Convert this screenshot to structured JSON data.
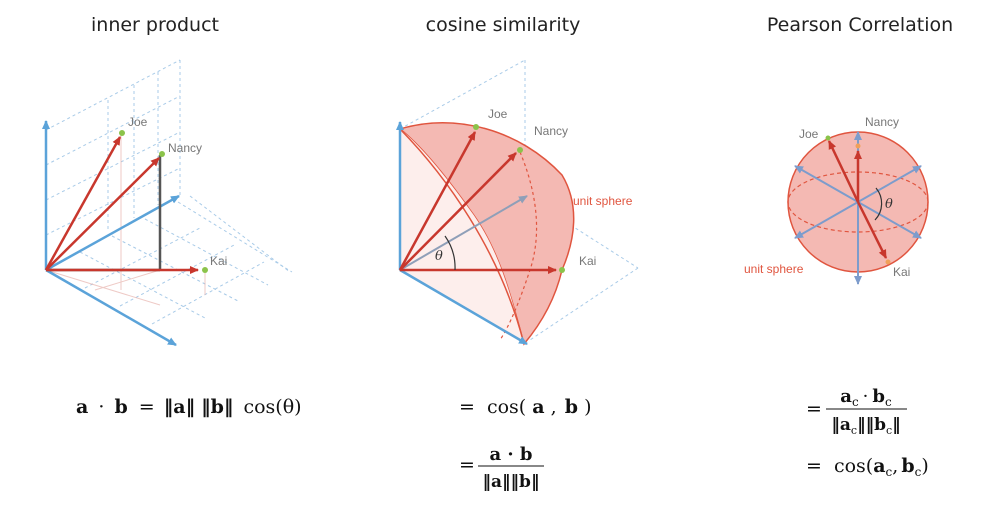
{
  "panels": {
    "inner": {
      "title": "inner product",
      "labels": {
        "joe": "Joe",
        "nancy": "Nancy",
        "kai": "Kai"
      },
      "formula": {
        "a": "a",
        "dot": "·",
        "b": "b",
        "eq": "=",
        "norm_a": "‖a‖",
        "norm_b": "‖b‖",
        "cos": "cos(θ)"
      }
    },
    "cosine": {
      "title": "cosine similarity",
      "labels": {
        "joe": "Joe",
        "nancy": "Nancy",
        "kai": "Kai",
        "sphere": "unit sphere",
        "theta": "θ"
      },
      "formula1": {
        "eq": "=",
        "cos": "cos(",
        "a": "a",
        "comma": ",",
        "b": "b",
        "close": ")"
      },
      "formula2": {
        "eq": "=",
        "num": "a · b",
        "den": "‖a‖‖b‖"
      }
    },
    "pearson": {
      "title": "Pearson Correlation",
      "labels": {
        "joe": "Joe",
        "nancy": "Nancy",
        "kai": "Kai",
        "sphere": "unit sphere",
        "theta": "θ"
      },
      "formula1": {
        "eq": "=",
        "num_a": "a",
        "num_sub_a": "c",
        "dot": "·",
        "num_b": "b",
        "num_sub_b": "c",
        "den_a": "‖a",
        "den_sub_a": "c",
        "den_mid": "‖‖b",
        "den_sub_b": "c",
        "den_close": "‖"
      },
      "formula2": {
        "eq": "=",
        "cos": "cos(",
        "a": "a",
        "sub_a": "c",
        "comma": ",",
        "b": "b",
        "sub_b": "c",
        "close": ")"
      }
    }
  },
  "colors": {
    "axis_blue": "#5ba3d9",
    "vector_red": "#c8372d",
    "sphere_fill": "#f4b9b3",
    "sphere_stroke": "#e0553f",
    "point_green": "#8bc34a",
    "grid_blue": "#a9cbe8"
  }
}
